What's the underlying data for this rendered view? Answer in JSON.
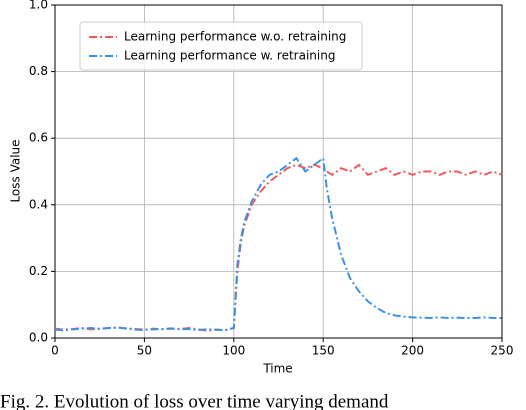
{
  "chart_data": {
    "type": "line",
    "x_label": "Time",
    "y_label": "Loss Value",
    "caption": "Fig. 2. Evolution of loss over time varying demand",
    "x": [
      0,
      5,
      10,
      15,
      20,
      25,
      30,
      35,
      40,
      45,
      50,
      55,
      60,
      65,
      70,
      75,
      80,
      85,
      90,
      95,
      100,
      102,
      104,
      106,
      108,
      110,
      115,
      120,
      125,
      130,
      135,
      140,
      145,
      150,
      152,
      155,
      160,
      165,
      170,
      175,
      180,
      185,
      190,
      195,
      200,
      205,
      210,
      215,
      220,
      225,
      230,
      235,
      240,
      245,
      250
    ],
    "series": [
      {
        "name": "Learning performance w.o. retraining",
        "color": "#f05a5f",
        "values": [
          0.028,
          0.025,
          0.027,
          0.03,
          0.026,
          0.028,
          0.03,
          0.032,
          0.029,
          0.027,
          0.025,
          0.028,
          0.026,
          0.029,
          0.027,
          0.03,
          0.026,
          0.022,
          0.025,
          0.024,
          0.03,
          0.2,
          0.29,
          0.34,
          0.37,
          0.4,
          0.44,
          0.47,
          0.49,
          0.51,
          0.52,
          0.51,
          0.52,
          0.51,
          0.5,
          0.49,
          0.51,
          0.5,
          0.52,
          0.49,
          0.5,
          0.51,
          0.49,
          0.5,
          0.49,
          0.5,
          0.5,
          0.49,
          0.5,
          0.5,
          0.49,
          0.5,
          0.49,
          0.5,
          0.49
        ]
      },
      {
        "name": "Learning performance w. retraining",
        "color": "#3a93e4",
        "values": [
          0.025,
          0.023,
          0.026,
          0.028,
          0.03,
          0.027,
          0.03,
          0.031,
          0.028,
          0.025,
          0.024,
          0.026,
          0.027,
          0.028,
          0.026,
          0.027,
          0.024,
          0.026,
          0.025,
          0.023,
          0.03,
          0.22,
          0.3,
          0.35,
          0.38,
          0.41,
          0.46,
          0.49,
          0.5,
          0.52,
          0.54,
          0.5,
          0.52,
          0.54,
          0.45,
          0.36,
          0.25,
          0.18,
          0.14,
          0.11,
          0.09,
          0.075,
          0.068,
          0.064,
          0.062,
          0.061,
          0.06,
          0.062,
          0.06,
          0.061,
          0.06,
          0.06,
          0.062,
          0.06,
          0.06
        ]
      }
    ],
    "xlim": [
      0,
      250
    ],
    "xticks": [
      0,
      50,
      100,
      150,
      200,
      250
    ],
    "ylim": [
      0,
      1
    ],
    "yticks": [
      {
        "value": 0,
        "label": "0.0"
      },
      {
        "value": 0.2,
        "label": "0.2"
      },
      {
        "value": 0.4,
        "label": "0.4"
      },
      {
        "value": 0.6,
        "label": "0.6"
      },
      {
        "value": 0.8,
        "label": "0.8"
      },
      {
        "value": 1,
        "label": "1.0"
      }
    ],
    "grid": true,
    "legend": "upper left"
  }
}
